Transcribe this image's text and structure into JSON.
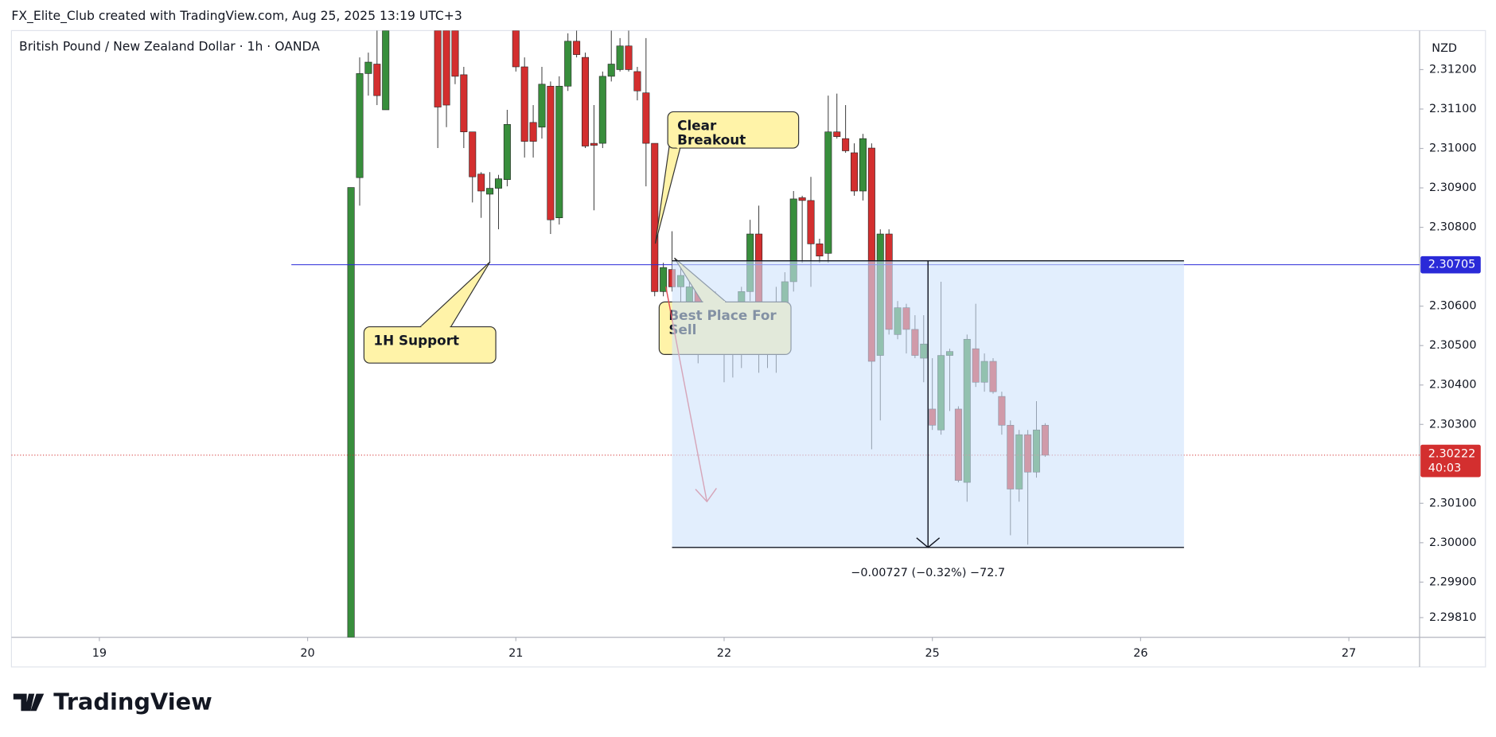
{
  "header": "FX_Elite_Club created with TradingView.com, Aug 25, 2025 13:19 UTC+3",
  "brand": "TradingView",
  "chart_data": {
    "type": "candlestick",
    "title": "British Pound / New Zealand Dollar · 1h · OANDA",
    "currency": "NZD",
    "up_color": "#388e3c",
    "down_color": "#d32f2f",
    "grid": false,
    "x": [
      29,
      30,
      31,
      32,
      33,
      39,
      40,
      41,
      42,
      43,
      44,
      45,
      46,
      47,
      48,
      49,
      50,
      51,
      52,
      53,
      54,
      55,
      56,
      57,
      58,
      59,
      60,
      61,
      62,
      63,
      64,
      65,
      66,
      67,
      68,
      69,
      70,
      71,
      72,
      73,
      74,
      75,
      76,
      77,
      78,
      79,
      80,
      81,
      82,
      83,
      84,
      85,
      86,
      87,
      88,
      89,
      90,
      91,
      92,
      93,
      94,
      95,
      96,
      97,
      98,
      99,
      100,
      101,
      102,
      103,
      104,
      105,
      106,
      107,
      108,
      109
    ],
    "open": [
      2.2976,
      2.30926,
      2.3119,
      2.31214,
      2.31098,
      2.31299,
      2.31299,
      2.31299,
      2.31187,
      2.31042,
      2.30935,
      2.30884,
      2.30899,
      2.30921,
      2.31299,
      2.31207,
      2.31066,
      2.31054,
      2.31158,
      2.30824,
      2.31158,
      2.31272,
      2.31231,
      2.31013,
      2.31013,
      2.31183,
      2.312,
      2.3126,
      2.31195,
      2.31141,
      2.31013,
      2.30637,
      2.30693,
      2.30649,
      2.30601,
      2.30649,
      2.30541,
      2.30601,
      2.30553,
      2.3048,
      2.30577,
      2.30637,
      2.30783,
      2.30528,
      2.30553,
      2.30577,
      2.30662,
      2.30875,
      2.30868,
      2.30758,
      2.30734,
      2.31042,
      2.31025,
      2.30989,
      2.30892,
      2.31001,
      2.30475,
      2.30783,
      2.30528,
      2.30596,
      2.30541,
      2.30468,
      2.30339,
      2.30286,
      2.30475,
      2.30339,
      2.30153,
      2.30492,
      2.30407,
      2.3046,
      2.30371,
      2.30298,
      2.30136,
      2.30274,
      2.30179,
      2.30298
    ],
    "high": [
      2.30901,
      2.31231,
      2.31243,
      2.31299,
      2.31299,
      2.31299,
      2.31299,
      2.31299,
      2.31207,
      2.31042,
      2.3094,
      2.3094,
      2.30933,
      2.31098,
      2.31299,
      2.31231,
      2.3111,
      2.31207,
      2.3117,
      2.31183,
      2.31292,
      2.31299,
      2.31243,
      2.3111,
      2.31195,
      2.31299,
      2.3128,
      2.31299,
      2.31207,
      2.3128,
      2.31013,
      2.3071,
      2.3079,
      2.3071,
      2.30662,
      2.30662,
      2.30625,
      2.30637,
      2.30577,
      2.30601,
      2.30649,
      2.30819,
      2.30855,
      2.30589,
      2.30649,
      2.30686,
      2.30892,
      2.3088,
      2.30928,
      2.30771,
      2.31134,
      2.31139,
      2.3111,
      2.31013,
      2.31037,
      2.31013,
      2.30795,
      2.30795,
      2.30613,
      2.30606,
      2.30577,
      2.30577,
      2.30468,
      2.30662,
      2.30492,
      2.30346,
      2.30528,
      2.30606,
      2.3048,
      2.30468,
      2.30383,
      2.3031,
      2.30286,
      2.30286,
      2.30359,
      2.30303
    ],
    "low": [
      2.2976,
      2.30855,
      2.31134,
      2.3111,
      2.31098,
      2.31001,
      2.31054,
      2.31163,
      2.31001,
      2.30863,
      2.30824,
      2.3071,
      2.30795,
      2.30904,
      2.31195,
      2.30977,
      2.30977,
      2.31025,
      2.30783,
      2.30807,
      2.31146,
      2.31231,
      2.31001,
      2.30843,
      2.31001,
      2.3117,
      2.31195,
      2.31195,
      2.31122,
      2.30904,
      2.30625,
      2.30625,
      2.30637,
      2.30601,
      2.30504,
      2.30455,
      2.30504,
      2.30528,
      2.30407,
      2.30419,
      2.30443,
      2.30613,
      2.30431,
      2.30443,
      2.30431,
      2.30516,
      2.30637,
      2.3071,
      2.30649,
      2.3071,
      2.3071,
      2.31025,
      2.30989,
      2.3088,
      2.30868,
      2.30237,
      2.3031,
      2.30528,
      2.30516,
      2.3048,
      2.30468,
      2.30407,
      2.30286,
      2.30274,
      2.30334,
      2.30153,
      2.30104,
      2.30395,
      2.30383,
      2.30378,
      2.30274,
      2.30019,
      2.30104,
      2.29995,
      2.30165,
      2.30218
    ],
    "close": [
      2.30901,
      2.3119,
      2.31219,
      2.31134,
      2.31299,
      2.31105,
      2.3111,
      2.31183,
      2.31042,
      2.30928,
      2.30892,
      2.30899,
      2.30923,
      2.31061,
      2.31207,
      2.31018,
      2.31018,
      2.31163,
      2.30819,
      2.31158,
      2.31272,
      2.31238,
      2.31006,
      2.31008,
      2.31183,
      2.31214,
      2.3126,
      2.312,
      2.31146,
      2.31013,
      2.30637,
      2.30698,
      2.30649,
      2.30678,
      2.30649,
      2.30504,
      2.30601,
      2.30553,
      2.3048,
      2.30577,
      2.30637,
      2.30783,
      2.3048,
      2.30565,
      2.30528,
      2.30662,
      2.30872,
      2.30868,
      2.30758,
      2.30727,
      2.31042,
      2.3103,
      2.30994,
      2.30892,
      2.31025,
      2.3046,
      2.30783,
      2.30541,
      2.30596,
      2.30541,
      2.30475,
      2.30504,
      2.30298,
      2.30475,
      2.30485,
      2.30158,
      2.30516,
      2.30407,
      2.3046,
      2.30383,
      2.30298,
      2.30136,
      2.30274,
      2.30179,
      2.30286,
      2.30222
    ],
    "xlim": [
      -10.13,
      152.15
    ],
    "xticks": [
      {
        "value": 0,
        "label": "19"
      },
      {
        "value": 24,
        "label": "20"
      },
      {
        "value": 48,
        "label": "21"
      },
      {
        "value": 72,
        "label": "22"
      },
      {
        "value": 96,
        "label": "25"
      },
      {
        "value": 120,
        "label": "26"
      },
      {
        "value": 144,
        "label": "27"
      }
    ],
    "ylim": [
      2.2976,
      2.31299
    ],
    "yticks": [
      {
        "value": 2.312,
        "label": "2.31200"
      },
      {
        "value": 2.311,
        "label": "2.31100"
      },
      {
        "value": 2.31,
        "label": "2.31000"
      },
      {
        "value": 2.309,
        "label": "2.30900"
      },
      {
        "value": 2.308,
        "label": "2.30800"
      },
      {
        "value": 2.306,
        "label": "2.30600"
      },
      {
        "value": 2.305,
        "label": "2.30500"
      },
      {
        "value": 2.304,
        "label": "2.30400"
      },
      {
        "value": 2.303,
        "label": "2.30300"
      },
      {
        "value": 2.301,
        "label": "2.30100"
      },
      {
        "value": 2.3,
        "label": "2.30000"
      },
      {
        "value": 2.299,
        "label": "2.29900"
      },
      {
        "value": 2.2981,
        "label": "2.29810"
      }
    ],
    "support_line": {
      "value": 2.30705,
      "color": "#2a2ad8"
    },
    "last_price": {
      "value": 2.30222,
      "countdown": "40:03",
      "color": "#d32f2f"
    },
    "measure": {
      "x": [
        66,
        125
      ],
      "top": 2.30715,
      "bottom": 2.29988,
      "label": "−0.00727 (−0.32%) −72.7"
    },
    "annotations": [
      "Clear Breakout",
      "1H Support",
      "Best Place For Sell"
    ]
  }
}
